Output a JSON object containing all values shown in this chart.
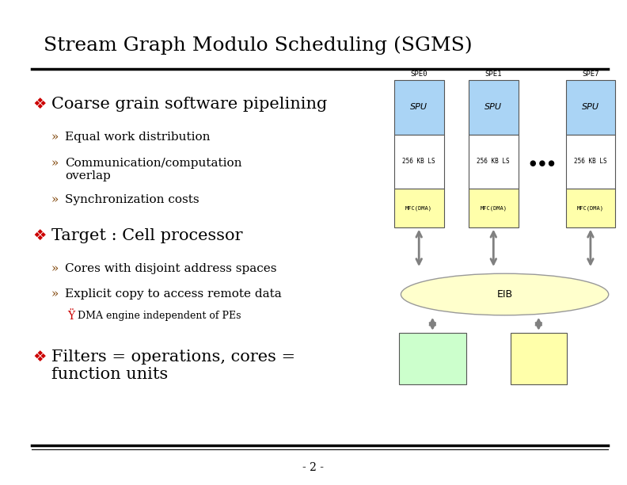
{
  "title": "Stream Graph Modulo Scheduling (SGMS)",
  "bg_color": "#ffffff",
  "title_color": "#000000",
  "title_fontsize": 18,
  "bullet_color": "#cc0000",
  "text_color": "#000000",
  "page_number": "- 2 -",
  "diagram": {
    "spe_labels": [
      "SPE0",
      "SPE1",
      "SPE7"
    ],
    "spu_color": "#aad4f5",
    "ls_color": "#ffffff",
    "mfc_color": "#ffffaa",
    "eib_color": "#ffffcc",
    "ppe_color": "#ccffcc",
    "dram_color": "#ffffaa",
    "arrow_color": "#808080"
  }
}
